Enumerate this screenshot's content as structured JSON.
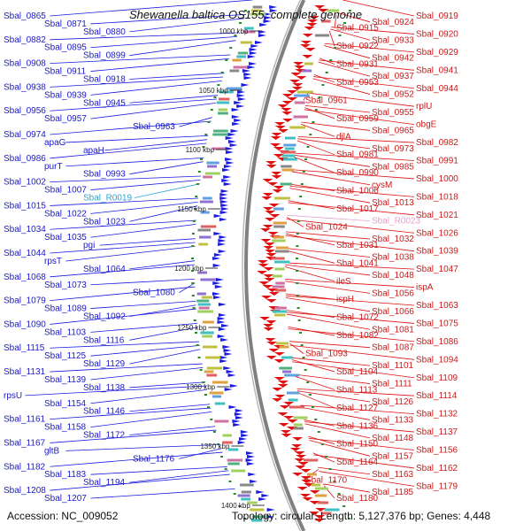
{
  "title": "Shewanella baltica OS155, complete genome",
  "accession": "Accession: NC_009052",
  "summary": "Topology: circular; Length: 5,127,376 bp; Genes: 4,448",
  "colors": {
    "forward_strand": "#e01010",
    "reverse_strand": "#1a1ae0",
    "backbone": "#808080",
    "left_label": "#1a1acc",
    "right_label": "#cc1a1a",
    "rna_cyan": "#2aa7d6",
    "rna_pink": "#e6a0d0",
    "tick": "#2a8a2a"
  },
  "ticks": [
    "1000 kbp",
    "1050 kbp",
    "1100 kbp",
    "1150 kbp",
    "1200 kbp",
    "1250 kbp",
    "1300 kbp",
    "1350 kbp",
    "1400 kbp"
  ],
  "left_labels": [
    {
      "text": "Sbal_0865"
    },
    {
      "text": "Sbal_0871"
    },
    {
      "text": "Sbal_0880"
    },
    {
      "text": "Sbal_0882"
    },
    {
      "text": "Sbal_0895"
    },
    {
      "text": "Sbal_0899"
    },
    {
      "text": "Sbal_0908"
    },
    {
      "text": "Sbal_0911"
    },
    {
      "text": "Sbal_0918"
    },
    {
      "text": "Sbal_0938"
    },
    {
      "text": "Sbal_0939"
    },
    {
      "text": "Sbal_0945"
    },
    {
      "text": "Sbal_0956"
    },
    {
      "text": "Sbal_0957"
    },
    {
      "text": "Sbal_0963"
    },
    {
      "text": "Sbal_0974"
    },
    {
      "text": "apaG"
    },
    {
      "text": "apaH"
    },
    {
      "text": "Sbal_0986"
    },
    {
      "text": "purT"
    },
    {
      "text": "Sbal_0993"
    },
    {
      "text": "Sbal_1002"
    },
    {
      "text": "Sbal_1007"
    },
    {
      "text": "Sbal_R0019",
      "kind": "cyan"
    },
    {
      "text": "Sbal_1015"
    },
    {
      "text": "Sbal_1022"
    },
    {
      "text": "Sbal_1023"
    },
    {
      "text": "Sbal_1034"
    },
    {
      "text": "Sbal_1035"
    },
    {
      "text": "pgi"
    },
    {
      "text": "Sbal_1044"
    },
    {
      "text": "rpsT"
    },
    {
      "text": "Sbal_1064"
    },
    {
      "text": "Sbal_1068"
    },
    {
      "text": "Sbal_1073"
    },
    {
      "text": "Sbal_1080"
    },
    {
      "text": "Sbal_1079"
    },
    {
      "text": "Sbal_1089"
    },
    {
      "text": "Sbal_1092"
    },
    {
      "text": "Sbal_1090"
    },
    {
      "text": "Sbal_1103"
    },
    {
      "text": "Sbal_1116"
    },
    {
      "text": "Sbal_1115"
    },
    {
      "text": "Sbal_1125"
    },
    {
      "text": "Sbal_1129"
    },
    {
      "text": "Sbal_1131"
    },
    {
      "text": "Sbal_1139"
    },
    {
      "text": "Sbal_1138"
    },
    {
      "text": "rpsU"
    },
    {
      "text": "Sbal_1154"
    },
    {
      "text": "Sbal_1146"
    },
    {
      "text": "Sbal_1161"
    },
    {
      "text": "Sbal_1158"
    },
    {
      "text": "Sbal_1172"
    },
    {
      "text": "Sbal_1167"
    },
    {
      "text": "gltB"
    },
    {
      "text": "Sbal_1176"
    },
    {
      "text": "Sbal_1182"
    },
    {
      "text": "Sbal_1183"
    },
    {
      "text": "Sbal_1194"
    },
    {
      "text": "Sbal_1208"
    },
    {
      "text": "Sbal_1207"
    }
  ],
  "right_labels": [
    {
      "text": "Sbal_0919"
    },
    {
      "text": "Sbal_0924"
    },
    {
      "text": "Sbal_0915"
    },
    {
      "text": "Sbal_0920"
    },
    {
      "text": "Sbal_0933"
    },
    {
      "text": "Sbal_0922"
    },
    {
      "text": "Sbal_0929"
    },
    {
      "text": "Sbal_0942"
    },
    {
      "text": "Sbal_0931"
    },
    {
      "text": "Sbal_0941"
    },
    {
      "text": "Sbal_0937"
    },
    {
      "text": "Sbal_0953"
    },
    {
      "text": "Sbal_0944"
    },
    {
      "text": "Sbal_0952"
    },
    {
      "text": "Sbal_0961"
    },
    {
      "text": "rplU"
    },
    {
      "text": "Sbal_0955"
    },
    {
      "text": "Sbal_0959"
    },
    {
      "text": "obgE"
    },
    {
      "text": "Sbal_0965"
    },
    {
      "text": "djlA"
    },
    {
      "text": "Sbal_0982"
    },
    {
      "text": "Sbal_0973"
    },
    {
      "text": "Sbal_0981"
    },
    {
      "text": "Sbal_0991"
    },
    {
      "text": "Sbal_0985"
    },
    {
      "text": "Sbal_0990"
    },
    {
      "text": "Sbal_1000"
    },
    {
      "text": "cysM"
    },
    {
      "text": "Sbal_1006"
    },
    {
      "text": "Sbal_1018"
    },
    {
      "text": "Sbal_1013"
    },
    {
      "text": "Sbal_1017"
    },
    {
      "text": "Sbal_1021"
    },
    {
      "text": "Sbal_R0023",
      "kind": "pink"
    },
    {
      "text": "Sbal_1024"
    },
    {
      "text": "Sbal_1026"
    },
    {
      "text": "Sbal_1032"
    },
    {
      "text": "Sbal_1031"
    },
    {
      "text": "Sbal_1039"
    },
    {
      "text": "Sbal_1038"
    },
    {
      "text": "Sbal_1041"
    },
    {
      "text": "Sbal_1047"
    },
    {
      "text": "Sbal_1048"
    },
    {
      "text": "ileS"
    },
    {
      "text": "ispA"
    },
    {
      "text": "Sbal_1056"
    },
    {
      "text": "ispH"
    },
    {
      "text": "Sbal_1063"
    },
    {
      "text": "Sbal_1066"
    },
    {
      "text": "Sbal_1072"
    },
    {
      "text": "Sbal_1075"
    },
    {
      "text": "Sbal_1081"
    },
    {
      "text": "Sbal_1082"
    },
    {
      "text": "Sbal_1086"
    },
    {
      "text": "Sbal_1087"
    },
    {
      "text": "Sbal_1093"
    },
    {
      "text": "Sbal_1094"
    },
    {
      "text": "Sbal_1101"
    },
    {
      "text": "Sbal_1104"
    },
    {
      "text": "Sbal_1109"
    },
    {
      "text": "Sbal_1111"
    },
    {
      "text": "Sbal_1113"
    },
    {
      "text": "Sbal_1114"
    },
    {
      "text": "Sbal_1126"
    },
    {
      "text": "Sbal_1127"
    },
    {
      "text": "Sbal_1132"
    },
    {
      "text": "Sbal_1133"
    },
    {
      "text": "Sbal_1136"
    },
    {
      "text": "Sbal_1137"
    },
    {
      "text": "Sbal_1148"
    },
    {
      "text": "Sbal_1150"
    },
    {
      "text": "Sbal_1156"
    },
    {
      "text": "Sbal_1157"
    },
    {
      "text": "Sbal_1164"
    },
    {
      "text": "Sbal_1162"
    },
    {
      "text": "Sbal_1163"
    },
    {
      "text": "Sbal_1170"
    },
    {
      "text": "Sbal_1179"
    },
    {
      "text": "Sbal_1185"
    },
    {
      "text": "Sbal_1180"
    }
  ]
}
